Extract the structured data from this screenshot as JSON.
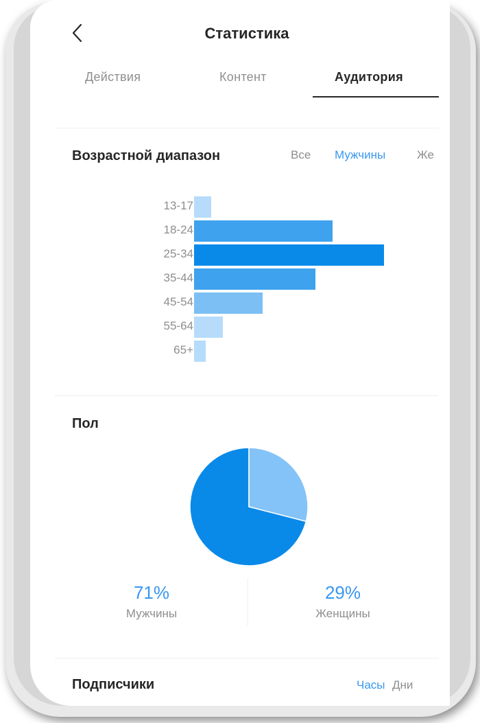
{
  "header": {
    "title": "Статистика"
  },
  "tabs": [
    {
      "label": "Действия"
    },
    {
      "label": "Контент"
    },
    {
      "label": "Аудитория"
    }
  ],
  "age": {
    "title": "Возрастной диапазон",
    "filters": [
      "Все",
      "Мужчины",
      "Же"
    ],
    "active_filter": "Мужчины"
  },
  "gender": {
    "title": "Пол",
    "men": {
      "value": "71%",
      "label": "Мужчины"
    },
    "women": {
      "value": "29%",
      "label": "Женщины"
    }
  },
  "followers": {
    "title": "Подписчики",
    "filters": [
      "Часы",
      "Дни"
    ],
    "active_filter": "Часы"
  },
  "colors": {
    "accent": "#3897f0",
    "bar_strong": "#0a8ae8",
    "bar_mid": "#3ea2ee",
    "bar_light": "#b7dcfb",
    "pie_men": "#0a8ae8",
    "pie_women": "#84c3f8"
  },
  "chart_data": [
    {
      "type": "bar",
      "orientation": "horizontal",
      "categories": [
        "13-17",
        "18-24",
        "25-34",
        "35-44",
        "45-54",
        "55-64",
        "65+"
      ],
      "values": [
        9,
        73,
        100,
        64,
        36,
        15,
        6
      ],
      "xlim": [
        0,
        100
      ],
      "title": "Возрастной диапазон"
    },
    {
      "type": "pie",
      "categories": [
        "Мужчины",
        "Женщины"
      ],
      "values": [
        71,
        29
      ],
      "title": "Пол"
    }
  ]
}
